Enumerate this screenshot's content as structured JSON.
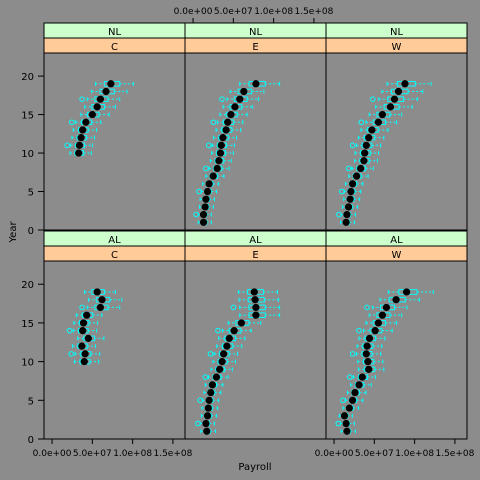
{
  "chart_data": {
    "type": "bwplot",
    "xlabel": "Payroll",
    "ylabel": "Year",
    "xlim": [
      -10000000,
      165000000
    ],
    "ylim": [
      0,
      23
    ],
    "x_ticks": [
      0,
      50000000,
      100000000,
      150000000
    ],
    "x_tick_labels": [
      "0.0e+00",
      "5.0e+07",
      "1.0e+08",
      "1.5e+08"
    ],
    "y_ticks": [
      0,
      5,
      10,
      15,
      20
    ],
    "colors": {
      "background": "#8c8c8c",
      "strip_top": "#ccffcc",
      "strip_bottom": "#ffcc99",
      "box": "#00ffff",
      "median": "#000000"
    },
    "panels": [
      {
        "league": "NL",
        "division": "C",
        "row": 0,
        "col": 0,
        "medians": [
          [
            10,
            33000000
          ],
          [
            11,
            34000000
          ],
          [
            12,
            36000000
          ],
          [
            13,
            38000000
          ],
          [
            14,
            42000000
          ],
          [
            15,
            50000000
          ],
          [
            16,
            56000000
          ],
          [
            17,
            60000000
          ],
          [
            18,
            67000000
          ],
          [
            19,
            73000000
          ]
        ]
      },
      {
        "league": "NL",
        "division": "E",
        "row": 0,
        "col": 1,
        "medians": [
          [
            1,
            13000000
          ],
          [
            2,
            13000000
          ],
          [
            3,
            15000000
          ],
          [
            4,
            16000000
          ],
          [
            5,
            18000000
          ],
          [
            6,
            20000000
          ],
          [
            7,
            25000000
          ],
          [
            8,
            30000000
          ],
          [
            9,
            32000000
          ],
          [
            10,
            34000000
          ],
          [
            11,
            35000000
          ],
          [
            12,
            37000000
          ],
          [
            13,
            41000000
          ],
          [
            14,
            43000000
          ],
          [
            15,
            47000000
          ],
          [
            16,
            52000000
          ],
          [
            17,
            58000000
          ],
          [
            18,
            63000000
          ],
          [
            19,
            78000000
          ]
        ]
      },
      {
        "league": "NL",
        "division": "W",
        "row": 0,
        "col": 2,
        "medians": [
          [
            1,
            15000000
          ],
          [
            2,
            16000000
          ],
          [
            3,
            18000000
          ],
          [
            4,
            20000000
          ],
          [
            5,
            21000000
          ],
          [
            6,
            23000000
          ],
          [
            7,
            28000000
          ],
          [
            8,
            33000000
          ],
          [
            9,
            37000000
          ],
          [
            10,
            38000000
          ],
          [
            11,
            40000000
          ],
          [
            12,
            43000000
          ],
          [
            13,
            47000000
          ],
          [
            14,
            55000000
          ],
          [
            15,
            60000000
          ],
          [
            16,
            70000000
          ],
          [
            17,
            75000000
          ],
          [
            18,
            80000000
          ],
          [
            19,
            88000000
          ]
        ]
      },
      {
        "league": "AL",
        "division": "C",
        "row": 1,
        "col": 0,
        "medians": [
          [
            10,
            40000000
          ],
          [
            11,
            41000000
          ],
          [
            12,
            37000000
          ],
          [
            13,
            45000000
          ],
          [
            14,
            38000000
          ],
          [
            15,
            39000000
          ],
          [
            16,
            43000000
          ],
          [
            17,
            60000000
          ],
          [
            18,
            62000000
          ],
          [
            19,
            56000000
          ]
        ]
      },
      {
        "league": "AL",
        "division": "E",
        "row": 1,
        "col": 1,
        "medians": [
          [
            1,
            17000000
          ],
          [
            2,
            16000000
          ],
          [
            3,
            18000000
          ],
          [
            4,
            19000000
          ],
          [
            5,
            20000000
          ],
          [
            6,
            22000000
          ],
          [
            7,
            24000000
          ],
          [
            8,
            29000000
          ],
          [
            9,
            33000000
          ],
          [
            10,
            36000000
          ],
          [
            11,
            38000000
          ],
          [
            12,
            42000000
          ],
          [
            13,
            45000000
          ],
          [
            14,
            51000000
          ],
          [
            15,
            60000000
          ],
          [
            16,
            78000000
          ],
          [
            17,
            78000000
          ],
          [
            18,
            77000000
          ],
          [
            19,
            76000000
          ]
        ]
      },
      {
        "league": "AL",
        "division": "W",
        "row": 1,
        "col": 2,
        "medians": [
          [
            1,
            16000000
          ],
          [
            2,
            15000000
          ],
          [
            3,
            13000000
          ],
          [
            4,
            19000000
          ],
          [
            5,
            23000000
          ],
          [
            6,
            26000000
          ],
          [
            7,
            31000000
          ],
          [
            8,
            35000000
          ],
          [
            9,
            43000000
          ],
          [
            10,
            42000000
          ],
          [
            11,
            40000000
          ],
          [
            12,
            41000000
          ],
          [
            13,
            44000000
          ],
          [
            14,
            51000000
          ],
          [
            15,
            55000000
          ],
          [
            16,
            60000000
          ],
          [
            17,
            65000000
          ],
          [
            18,
            77000000
          ],
          [
            19,
            90000000
          ]
        ]
      }
    ]
  }
}
